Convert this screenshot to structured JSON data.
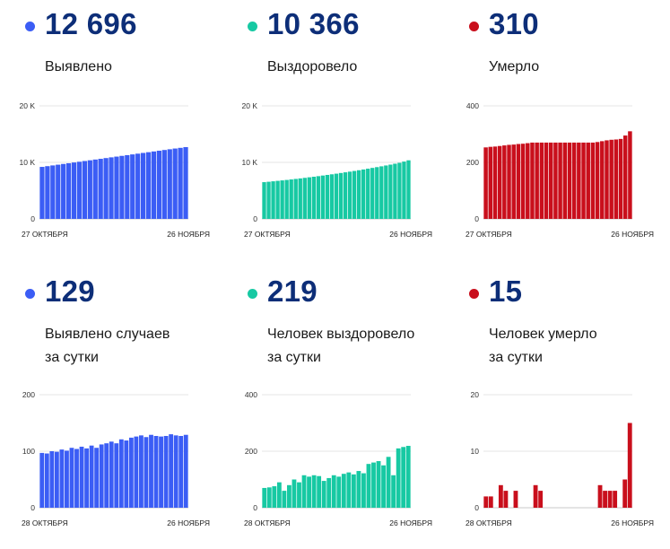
{
  "colors": {
    "blue": "#3b5df5",
    "green": "#17c9a3",
    "red": "#c90f1c",
    "number": "#0d2e78"
  },
  "chart_data": [
    {
      "type": "bar",
      "color": "blue",
      "number": "12 696",
      "label_lines": [
        "Выявлено"
      ],
      "ylim": [
        0,
        20000
      ],
      "yticks": [
        0,
        10000,
        20000
      ],
      "ytick_labels": [
        "0",
        "10 K",
        "20 K"
      ],
      "x_labels": [
        "27 ОКТЯБРЯ",
        "26 НОЯБРЯ"
      ],
      "values": [
        9200,
        9330,
        9460,
        9590,
        9720,
        9850,
        9980,
        10110,
        10240,
        10370,
        10500,
        10630,
        10760,
        10890,
        11020,
        11150,
        11280,
        11410,
        11540,
        11670,
        11800,
        11930,
        12060,
        12190,
        12320,
        12450,
        12570,
        12696
      ]
    },
    {
      "type": "bar",
      "color": "green",
      "number": "10 366",
      "label_lines": [
        "Выздоровело"
      ],
      "ylim": [
        0,
        20000
      ],
      "yticks": [
        0,
        10000,
        20000
      ],
      "ytick_labels": [
        "0",
        "10 K",
        "20 K"
      ],
      "x_labels": [
        "27 ОКТЯБРЯ",
        "26 НОЯБРЯ"
      ],
      "values": [
        6500,
        6570,
        6650,
        6730,
        6810,
        6890,
        6980,
        7070,
        7160,
        7260,
        7360,
        7460,
        7560,
        7670,
        7780,
        7890,
        8000,
        8120,
        8240,
        8360,
        8480,
        8610,
        8740,
        8880,
        9020,
        9160,
        9300,
        9450,
        9600,
        9760,
        9920,
        10140,
        10366
      ]
    },
    {
      "type": "bar",
      "color": "red",
      "number": "310",
      "label_lines": [
        "Умерло"
      ],
      "ylim": [
        0,
        400
      ],
      "yticks": [
        0,
        200,
        400
      ],
      "ytick_labels": [
        "0",
        "200",
        "400"
      ],
      "x_labels": [
        "27 ОКТЯБРЯ",
        "26 НОЯБРЯ"
      ],
      "values": [
        253,
        255,
        256,
        258,
        260,
        262,
        263,
        265,
        266,
        268,
        270,
        270,
        270,
        270,
        270,
        270,
        270,
        270,
        270,
        270,
        270,
        270,
        270,
        270,
        272,
        275,
        278,
        280,
        281,
        283,
        295,
        310
      ]
    },
    {
      "type": "bar",
      "color": "blue",
      "number": "129",
      "label_lines": [
        "Выявлено случаев",
        "за сутки"
      ],
      "ylim": [
        0,
        200
      ],
      "yticks": [
        0,
        100,
        200
      ],
      "ytick_labels": [
        "0",
        "100",
        "200"
      ],
      "x_labels": [
        "28 ОКТЯБРЯ",
        "26 НОЯБРЯ"
      ],
      "values": [
        97,
        96,
        100,
        99,
        103,
        101,
        106,
        104,
        108,
        105,
        110,
        106,
        112,
        114,
        117,
        114,
        121,
        119,
        124,
        126,
        128,
        125,
        129,
        127,
        126,
        127,
        130,
        128,
        127,
        129
      ]
    },
    {
      "type": "bar",
      "color": "green",
      "number": "219",
      "label_lines": [
        "Человек выздоровело",
        "за сутки"
      ],
      "ylim": [
        0,
        400
      ],
      "yticks": [
        0,
        200,
        400
      ],
      "ytick_labels": [
        "0",
        "200",
        "400"
      ],
      "x_labels": [
        "28 ОКТЯБРЯ",
        "26 НОЯБРЯ"
      ],
      "values": [
        70,
        72,
        76,
        90,
        60,
        80,
        100,
        90,
        115,
        110,
        115,
        112,
        95,
        105,
        115,
        110,
        120,
        125,
        118,
        130,
        122,
        155,
        160,
        165,
        150,
        180,
        115,
        210,
        215,
        219
      ]
    },
    {
      "type": "bar",
      "color": "red",
      "number": "15",
      "label_lines": [
        "Человек умерло",
        "за сутки"
      ],
      "ylim": [
        0,
        20
      ],
      "yticks": [
        0,
        10,
        20
      ],
      "ytick_labels": [
        "0",
        "10",
        "20"
      ],
      "x_labels": [
        "28 ОКТЯБРЯ",
        "26 НОЯБРЯ"
      ],
      "values": [
        2,
        2,
        0,
        4,
        3,
        0,
        3,
        0,
        0,
        0,
        4,
        3,
        0,
        0,
        0,
        0,
        0,
        0,
        0,
        0,
        0,
        0,
        0,
        4,
        3,
        3,
        3,
        0,
        5,
        15
      ]
    }
  ]
}
